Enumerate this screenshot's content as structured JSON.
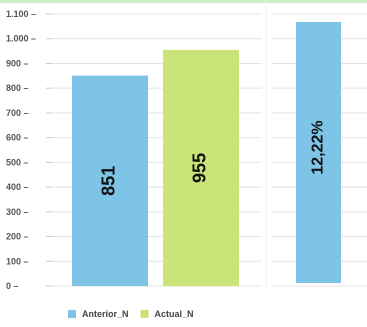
{
  "chart_data": [
    {
      "type": "bar",
      "categories": [
        "Anterior_N",
        "Actual_N"
      ],
      "values": [
        851,
        955
      ],
      "data_labels": [
        "851",
        "955"
      ],
      "ylim": [
        0,
        1100
      ],
      "ticks": [
        0,
        100,
        200,
        300,
        400,
        500,
        600,
        700,
        800,
        900,
        1000,
        1100
      ],
      "tick_labels": [
        "0",
        "100",
        "200",
        "300",
        "400",
        "500",
        "600",
        "700",
        "800",
        "900",
        "1.000",
        "1.100"
      ],
      "grid": true,
      "legend_position": "bottom-left",
      "colors": [
        "#7ec4e6",
        "#c9e57a"
      ]
    },
    {
      "type": "bar",
      "values": [
        12.22
      ],
      "data_labels": [
        "12,22%"
      ],
      "grid": true,
      "colors": [
        "#7ec4e6"
      ]
    }
  ],
  "legend": [
    {
      "label": "Anterior_N",
      "color": "#7ec4e6"
    },
    {
      "label": "Actual_N",
      "color": "#c9e57a"
    }
  ],
  "colors": {
    "grid": "#e4e4e4",
    "axis": "#cccccc",
    "top_accent": "#c8eec8"
  }
}
